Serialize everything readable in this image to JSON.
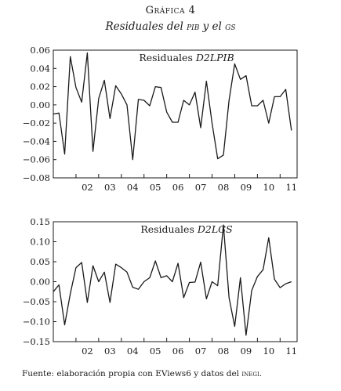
{
  "figure": {
    "label": "Gráfica 4",
    "title_prefix": "Residuales del ",
    "title_sc1": "pib",
    "title_mid": " y el ",
    "title_sc2": "gs"
  },
  "source": {
    "text": "Fuente: elaboración propia con EViews6 y datos del ",
    "sc": "inegi",
    "end": "."
  },
  "colors": {
    "line": "#1a1a1a",
    "axis": "#1a1a1a",
    "bg": "#ffffff"
  },
  "chart_data": [
    {
      "type": "line",
      "title_plain": "Residuales ",
      "title_italic": "D2LPIB",
      "grid": false,
      "ylim": [
        -0.08,
        0.06
      ],
      "xlim": [
        2001.0,
        2011.75
      ],
      "yticks": [
        -0.08,
        -0.06,
        -0.04,
        -0.02,
        0.0,
        0.02,
        0.04,
        0.06
      ],
      "ytick_labels": [
        "−0.08",
        "−0.06",
        "−0.04",
        "−0.02",
        "0.00",
        "0.02",
        "0.04",
        "0.06"
      ],
      "xtick_labels": [
        "02",
        "03",
        "04",
        "05",
        "06",
        "07",
        "08",
        "09",
        "10",
        "11"
      ],
      "series": [
        {
          "x_start": 2001.0,
          "x_step": 0.25,
          "values": [
            -0.01,
            -0.009,
            -0.054,
            0.053,
            0.019,
            0.003,
            0.057,
            -0.051,
            0.007,
            0.027,
            -0.015,
            0.021,
            0.012,
            0.0,
            -0.06,
            0.006,
            0.005,
            -0.001,
            0.02,
            0.019,
            -0.008,
            -0.019,
            -0.019,
            0.005,
            0.0,
            0.014,
            -0.025,
            0.026,
            -0.02,
            -0.059,
            -0.055,
            0.005,
            0.045,
            0.028,
            0.032,
            -0.001,
            -0.001,
            0.005,
            -0.02,
            0.009,
            0.009,
            0.017,
            -0.028
          ]
        }
      ]
    },
    {
      "type": "line",
      "title_plain": "Residuales ",
      "title_italic": "D2LGS",
      "grid": false,
      "ylim": [
        -0.15,
        0.15
      ],
      "xlim": [
        2001.0,
        2011.75
      ],
      "yticks": [
        -0.15,
        -0.1,
        -0.05,
        0.0,
        0.05,
        0.1,
        0.15
      ],
      "ytick_labels": [
        "−0.15",
        "−0.10",
        "−0.05",
        "0.00",
        "0.05",
        "0.10",
        "0.15"
      ],
      "xtick_labels": [
        "02",
        "03",
        "04",
        "05",
        "06",
        "07",
        "08",
        "09",
        "10",
        "11"
      ],
      "series": [
        {
          "x_start": 2001.0,
          "x_step": 0.25,
          "values": [
            -0.025,
            -0.008,
            -0.108,
            -0.03,
            0.035,
            0.048,
            -0.052,
            0.04,
            0.0,
            0.024,
            -0.052,
            0.044,
            0.035,
            0.024,
            -0.014,
            -0.019,
            0.0,
            0.01,
            0.052,
            0.01,
            0.015,
            0.0,
            0.046,
            -0.04,
            -0.002,
            -0.001,
            0.049,
            -0.043,
            0.0,
            -0.01,
            0.142,
            -0.04,
            -0.112,
            0.01,
            -0.134,
            -0.022,
            0.013,
            0.03,
            0.11,
            0.006,
            -0.015,
            -0.005,
            0.0
          ]
        }
      ]
    }
  ]
}
